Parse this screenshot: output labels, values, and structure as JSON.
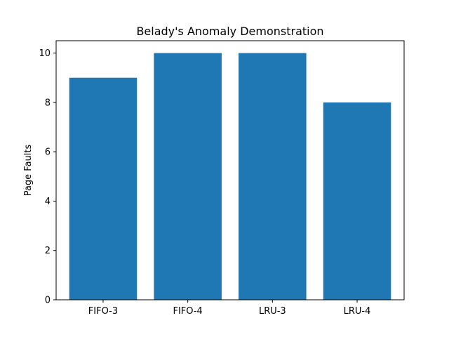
{
  "chart_data": {
    "type": "bar",
    "title": "Belady's Anomaly Demonstration",
    "xlabel": "",
    "ylabel": "Page Faults",
    "categories": [
      "FIFO-3",
      "FIFO-4",
      "LRU-3",
      "LRU-4"
    ],
    "values": [
      9,
      10,
      10,
      8
    ],
    "ylim": [
      0,
      10.5
    ],
    "yticks": [
      0,
      2,
      4,
      6,
      8,
      10
    ],
    "grid": false,
    "legend": "none",
    "bar_color": "#1f77b4"
  }
}
